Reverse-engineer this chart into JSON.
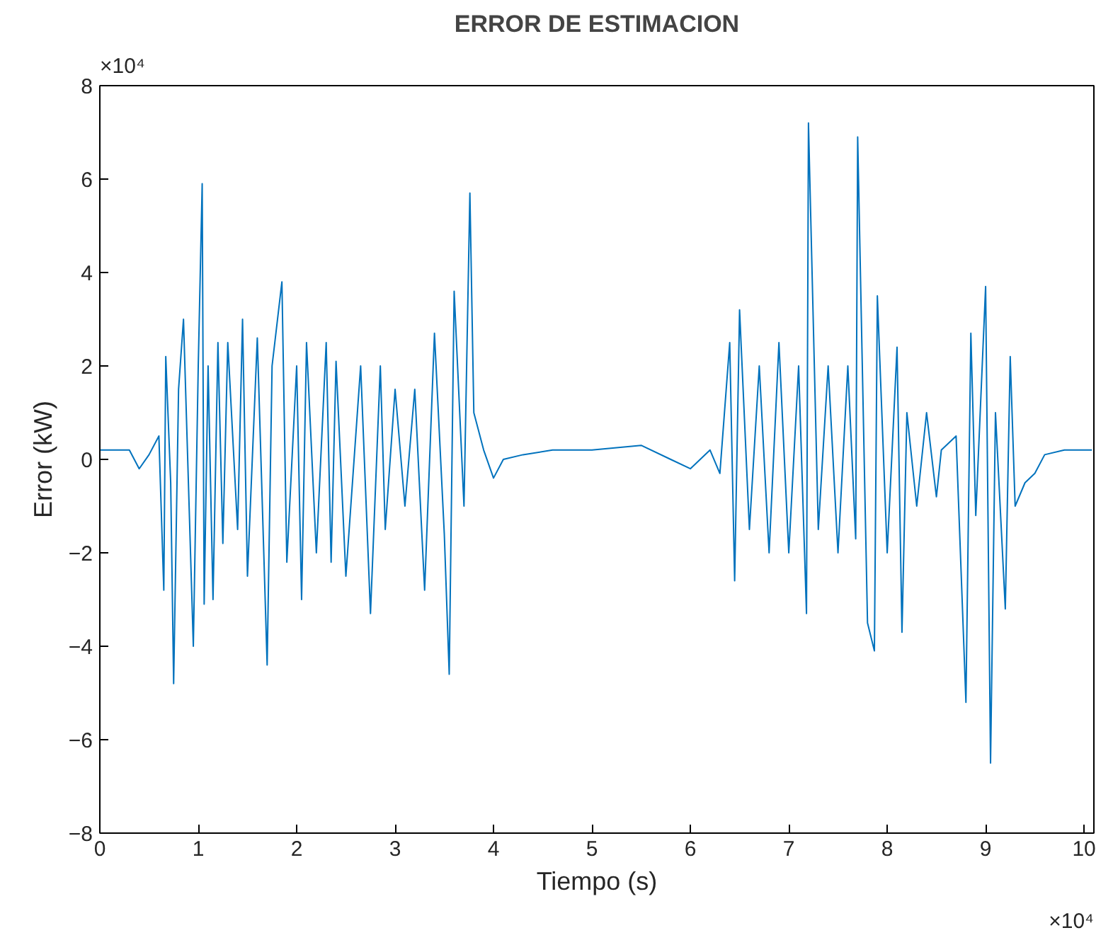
{
  "chart_data": {
    "type": "line",
    "title": "ERROR DE ESTIMACION",
    "xlabel": "Tiempo (s)",
    "ylabel": "Error (kW)",
    "annotations": [
      "×10⁴",
      "×10⁴"
    ],
    "x": [
      0,
      0.3,
      0.4,
      0.5,
      0.6,
      0.65,
      0.67,
      0.72,
      0.75,
      0.8,
      0.85,
      0.95,
      1.0,
      1.04,
      1.06,
      1.1,
      1.15,
      1.2,
      1.25,
      1.3,
      1.4,
      1.45,
      1.5,
      1.6,
      1.7,
      1.75,
      1.85,
      1.9,
      2.0,
      2.05,
      2.1,
      2.2,
      2.3,
      2.35,
      2.4,
      2.5,
      2.65,
      2.75,
      2.85,
      2.9,
      3.0,
      3.1,
      3.2,
      3.3,
      3.4,
      3.5,
      3.55,
      3.6,
      3.7,
      3.76,
      3.8,
      3.9,
      4.0,
      4.1,
      4.3,
      4.6,
      5.0,
      5.5,
      5.8,
      6.0,
      6.2,
      6.3,
      6.4,
      6.45,
      6.5,
      6.6,
      6.7,
      6.8,
      6.9,
      7.0,
      7.1,
      7.18,
      7.2,
      7.3,
      7.4,
      7.5,
      7.6,
      7.68,
      7.7,
      7.8,
      7.87,
      7.9,
      8.0,
      8.1,
      8.15,
      8.2,
      8.3,
      8.4,
      8.5,
      8.55,
      8.7,
      8.8,
      8.85,
      8.9,
      9.0,
      9.05,
      9.1,
      9.2,
      9.25,
      9.3,
      9.4,
      9.5,
      9.6,
      9.8,
      10.08
    ],
    "values": [
      0.2,
      0.2,
      -0.2,
      0.1,
      0.5,
      -2.8,
      2.2,
      -0.5,
      -4.8,
      1.5,
      3.0,
      -4.0,
      2.0,
      5.9,
      -3.1,
      2.0,
      -3.0,
      2.5,
      -1.8,
      2.5,
      -1.5,
      3.0,
      -2.5,
      2.6,
      -4.4,
      2.0,
      3.8,
      -2.2,
      2.0,
      -3.0,
      2.5,
      -2.0,
      2.5,
      -2.2,
      2.1,
      -2.5,
      2.0,
      -3.3,
      2.0,
      -1.5,
      1.5,
      -1.0,
      1.5,
      -2.8,
      2.7,
      -1.6,
      -4.6,
      3.6,
      -1.0,
      5.7,
      1.0,
      0.2,
      -0.4,
      0,
      0.1,
      0.2,
      0.2,
      0.3,
      0,
      -0.2,
      0.2,
      -0.3,
      2.5,
      -2.6,
      3.2,
      -1.5,
      2.0,
      -2.0,
      2.5,
      -2.0,
      2.0,
      -3.3,
      7.2,
      -1.5,
      2.0,
      -2.0,
      2.0,
      -1.7,
      6.9,
      -3.5,
      -4.1,
      3.5,
      -2.0,
      2.4,
      -3.7,
      1.0,
      -1.0,
      1.0,
      -0.8,
      0.2,
      0.5,
      -5.2,
      2.7,
      -1.2,
      3.7,
      -6.5,
      1.0,
      -3.2,
      2.2,
      -1.0,
      -0.5,
      -0.3,
      0.1,
      0.2,
      0.2
    ],
    "color": "#0072bd",
    "line_style": "solid",
    "marker": "none",
    "grid": false,
    "xlim": [
      0,
      10.1
    ],
    "ylim": [
      -8,
      8
    ],
    "xticks": [
      0,
      1,
      2,
      3,
      4,
      5,
      6,
      7,
      8,
      9,
      10
    ],
    "yticks": [
      -8,
      -6,
      -4,
      -2,
      0,
      2,
      4,
      6,
      8
    ]
  }
}
